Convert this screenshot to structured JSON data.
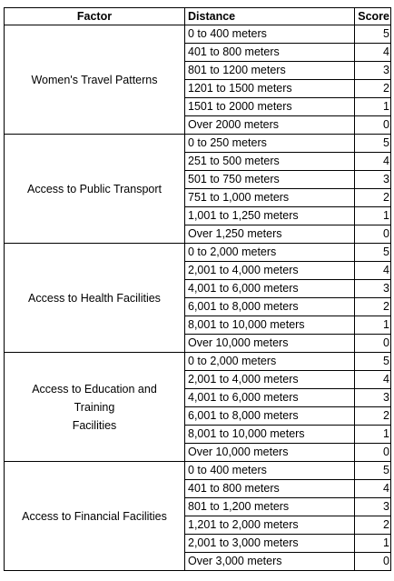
{
  "headers": {
    "factor": "Factor",
    "distance": "Distance",
    "score": "Score"
  },
  "groups": [
    {
      "factor_lines": [
        "Women's Travel Patterns"
      ],
      "rows": [
        {
          "distance": "0 to 400 meters",
          "score": "5"
        },
        {
          "distance": "401 to 800 meters",
          "score": "4"
        },
        {
          "distance": "801 to 1200 meters",
          "score": "3"
        },
        {
          "distance": "1201 to 1500 meters",
          "score": "2"
        },
        {
          "distance": "1501 to 2000 meters",
          "score": "1"
        },
        {
          "distance": "Over 2000 meters",
          "score": "0"
        }
      ]
    },
    {
      "factor_lines": [
        "Access to Public Transport"
      ],
      "rows": [
        {
          "distance": "0 to 250 meters",
          "score": "5"
        },
        {
          "distance": "251 to 500 meters",
          "score": "4"
        },
        {
          "distance": "501 to 750 meters",
          "score": "3"
        },
        {
          "distance": "751 to 1,000 meters",
          "score": "2"
        },
        {
          "distance": "1,001 to 1,250 meters",
          "score": "1"
        },
        {
          "distance": "Over 1,250 meters",
          "score": "0"
        }
      ]
    },
    {
      "factor_lines": [
        "Access to Health Facilities"
      ],
      "rows": [
        {
          "distance": "0 to 2,000 meters",
          "score": "5"
        },
        {
          "distance": "2,001 to 4,000 meters",
          "score": "4"
        },
        {
          "distance": "4,001 to 6,000 meters",
          "score": "3"
        },
        {
          "distance": "6,001 to 8,000 meters",
          "score": "2"
        },
        {
          "distance": "8,001 to 10,000 meters",
          "score": "1"
        },
        {
          "distance": "Over 10,000 meters",
          "score": "0"
        }
      ]
    },
    {
      "factor_lines": [
        "Access to Education and",
        "Training",
        "Facilities"
      ],
      "rows": [
        {
          "distance": "0 to 2,000 meters",
          "score": "5"
        },
        {
          "distance": "2,001 to 4,000 meters",
          "score": "4"
        },
        {
          "distance": "4,001 to 6,000 meters",
          "score": "3"
        },
        {
          "distance": "6,001 to 8,000 meters",
          "score": "2"
        },
        {
          "distance": "8,001 to 10,000 meters",
          "score": "1"
        },
        {
          "distance": "Over 10,000 meters",
          "score": "0"
        }
      ]
    },
    {
      "factor_lines": [
        "Access to Financial Facilities"
      ],
      "rows": [
        {
          "distance": "0 to 400 meters",
          "score": "5"
        },
        {
          "distance": "401 to 800 meters",
          "score": "4"
        },
        {
          "distance": "801 to 1,200 meters",
          "score": "3"
        },
        {
          "distance": "1,201 to 2,000 meters",
          "score": "2"
        },
        {
          "distance": "2,001 to 3,000 meters",
          "score": "1"
        },
        {
          "distance": "Over 3,000 meters",
          "score": "0"
        }
      ]
    }
  ]
}
